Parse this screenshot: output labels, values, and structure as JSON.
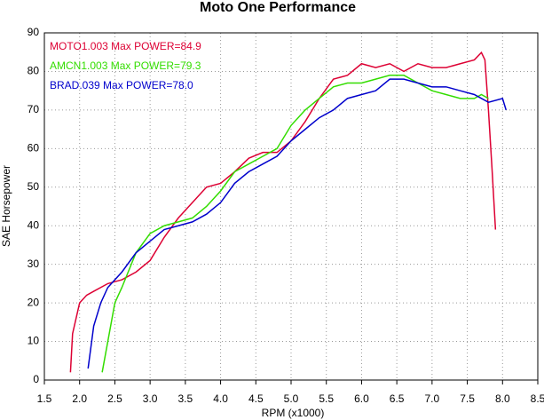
{
  "chart_data": {
    "type": "line",
    "title": "Moto One Performance",
    "x_label": "RPM (x1000)",
    "y_label": "SAE Horsepower",
    "xlim": [
      1.5,
      8.5
    ],
    "ylim": [
      0,
      90
    ],
    "xticks": [
      1.5,
      {
        "value": 2,
        "label": "2.0"
      },
      2.5,
      {
        "value": 3,
        "label": "3.0"
      },
      3.5,
      {
        "value": 4,
        "label": "4.0"
      },
      4.5,
      {
        "value": 5,
        "label": "5.0"
      },
      5.5,
      {
        "value": 6,
        "label": "6.0"
      },
      6.5,
      {
        "value": 7,
        "label": "7.0"
      },
      7.5,
      {
        "value": 8,
        "label": "8.0"
      },
      8.5
    ],
    "yticks": [
      0,
      10,
      20,
      30,
      40,
      50,
      60,
      70,
      80,
      90
    ],
    "grid": true,
    "legend": "upper-left",
    "series": [
      {
        "name": "MOTO1.003  Max POWER=84.9",
        "color": "#dd0033",
        "x": [
          1.87,
          1.9,
          2.0,
          2.1,
          2.2,
          2.4,
          2.6,
          2.8,
          3.0,
          3.2,
          3.4,
          3.6,
          3.8,
          4.0,
          4.2,
          4.4,
          4.6,
          4.8,
          5.0,
          5.2,
          5.4,
          5.6,
          5.8,
          6.0,
          6.2,
          6.4,
          6.6,
          6.8,
          7.0,
          7.2,
          7.4,
          7.6,
          7.7,
          7.75,
          7.8,
          7.85,
          7.9
        ],
        "values": [
          2,
          12,
          20,
          22,
          23,
          25,
          26,
          28,
          31,
          37,
          42,
          46,
          50,
          51,
          54,
          57.5,
          59,
          59,
          62,
          67,
          73,
          78,
          79,
          82,
          81,
          82,
          80,
          82,
          81,
          81,
          82,
          83,
          84.9,
          83,
          70,
          55,
          39
        ]
      },
      {
        "name": "AMCN1.003  Max POWER=79.3",
        "color": "#33dd00",
        "x": [
          2.32,
          2.4,
          2.5,
          2.6,
          2.8,
          3.0,
          3.2,
          3.4,
          3.6,
          3.8,
          4.0,
          4.2,
          4.4,
          4.6,
          4.8,
          5.0,
          5.2,
          5.4,
          5.6,
          5.8,
          6.0,
          6.2,
          6.4,
          6.6,
          6.8,
          7.0,
          7.2,
          7.4,
          7.6,
          7.7,
          7.8
        ],
        "values": [
          2,
          10,
          20,
          24,
          33,
          38,
          40,
          41,
          42,
          45,
          49,
          54,
          56,
          58,
          60,
          66,
          70,
          73,
          76,
          77,
          77,
          78,
          79,
          79,
          77,
          75,
          74,
          73,
          73,
          74,
          73
        ]
      },
      {
        "name": "BRAD.039  Max POWER=78.0",
        "color": "#0000cc",
        "x": [
          2.12,
          2.2,
          2.3,
          2.4,
          2.6,
          2.8,
          3.0,
          3.2,
          3.4,
          3.6,
          3.8,
          4.0,
          4.2,
          4.4,
          4.6,
          4.8,
          5.0,
          5.2,
          5.4,
          5.6,
          5.8,
          6.0,
          6.2,
          6.4,
          6.6,
          6.8,
          7.0,
          7.2,
          7.4,
          7.6,
          7.8,
          8.0,
          8.05
        ],
        "values": [
          3,
          14,
          20,
          24,
          28,
          33,
          36,
          39,
          40,
          41,
          43,
          46,
          51,
          54,
          56,
          58,
          62,
          65,
          68,
          70,
          73,
          74,
          75,
          78,
          78,
          77,
          76,
          76,
          75,
          74,
          72,
          73,
          70
        ]
      }
    ]
  }
}
